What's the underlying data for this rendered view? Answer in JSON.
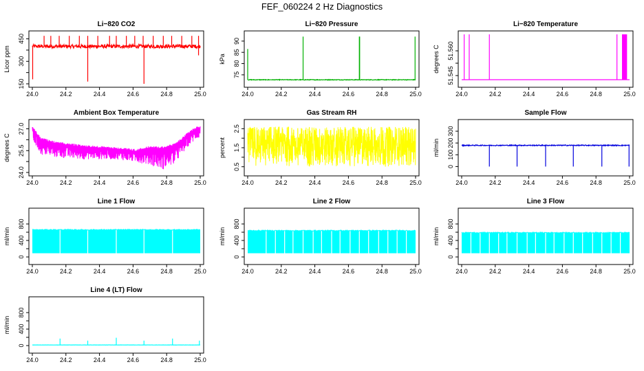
{
  "figure_title": "FEF_060224  2 Hz Diagnostics",
  "colors": {
    "co2": "#ff0000",
    "pressure": "#00b000",
    "temperature": "#ff00ff",
    "ambient": "#ff00ff",
    "rh": "#ffff00",
    "sample_flow": "#0000dd",
    "line_flow": "#00ffff"
  },
  "chart_data": [
    {
      "id": "co2",
      "type": "line",
      "title": "Li−820 CO2",
      "ylabel": "Licor ppm",
      "xlim": [
        24.0,
        25.0
      ],
      "ylim": [
        150,
        480
      ],
      "x_ticks": [
        "24.0",
        "24.2",
        "24.4",
        "24.6",
        "24.8",
        "25.0"
      ],
      "x_tick_values": [
        24.0,
        24.2,
        24.4,
        24.6,
        24.8,
        25.0
      ],
      "y_ticks": [
        "150",
        "300",
        "450"
      ],
      "y_tick_values": [
        150,
        300,
        450
      ],
      "minor_y_ticks": [
        225,
        375
      ],
      "baseline": 400,
      "noise": 12,
      "color_key": "co2",
      "spikes_up": [
        24.07,
        24.11,
        24.16,
        24.22,
        24.28,
        24.33,
        24.39,
        24.46,
        24.5,
        24.56,
        24.61,
        24.66,
        24.72,
        24.78,
        24.83,
        24.89,
        24.95,
        24.99
      ],
      "spike_up_value": 470,
      "spikes_down": [
        [
          24.002,
          180
        ],
        [
          24.33,
          165
        ],
        [
          24.665,
          150
        ],
        [
          24.99,
          340
        ]
      ]
    },
    {
      "id": "pressure",
      "type": "line",
      "title": "Li−820 Pressure",
      "ylabel": "kPa",
      "xlim": [
        24.0,
        25.0
      ],
      "ylim": [
        71,
        93
      ],
      "x_ticks": [
        "24.0",
        "24.2",
        "24.4",
        "24.6",
        "24.8",
        "25.0"
      ],
      "x_tick_values": [
        24.0,
        24.2,
        24.4,
        24.6,
        24.8,
        25.0
      ],
      "y_ticks": [
        "75",
        "80",
        "85",
        "90"
      ],
      "y_tick_values": [
        75,
        80,
        85,
        90
      ],
      "baseline": 72.8,
      "noise": 0.15,
      "color_key": "pressure",
      "spikes_up": [
        24.33,
        24.665,
        24.667,
        24.997
      ],
      "spike_up_value": 92,
      "spikes_extra": [
        [
          24.0,
          86.5
        ]
      ]
    },
    {
      "id": "temperature",
      "type": "line",
      "title": "Li−820 Temperature",
      "ylabel": "degrees C",
      "xlim": [
        24.0,
        25.0
      ],
      "ylim": [
        51.54,
        51.57
      ],
      "x_ticks": [
        "24.0",
        "24.2",
        "24.4",
        "24.6",
        "24.8",
        "25.0"
      ],
      "x_tick_values": [
        24.0,
        24.2,
        24.4,
        24.6,
        24.8,
        25.0
      ],
      "y_ticks": [
        "51.545",
        "51.560"
      ],
      "y_tick_values": [
        51.545,
        51.56
      ],
      "minor_y_ticks": [
        51.5525
      ],
      "baseline": 51.5425,
      "noise": 0,
      "color_key": "temperature",
      "spikes_up": [
        24.015,
        24.045,
        24.165,
        24.925
      ],
      "spike_up_value": 51.57,
      "filled_block": [
        24.955,
        24.985
      ]
    },
    {
      "id": "ambient",
      "type": "line",
      "title": "Ambient Box Temperature",
      "ylabel": "degrees C",
      "xlim": [
        24.0,
        25.0
      ],
      "ylim": [
        24.0,
        27.4
      ],
      "x_ticks": [
        "24.0",
        "24.2",
        "24.4",
        "24.6",
        "24.8",
        "25.0"
      ],
      "x_tick_values": [
        24.0,
        24.2,
        24.4,
        24.6,
        24.8,
        25.0
      ],
      "y_ticks": [
        "24.0",
        "25.5",
        "27.0"
      ],
      "y_tick_values": [
        24.0,
        25.5,
        27.0
      ],
      "minor_y_ticks": [
        24.75,
        26.25
      ],
      "color_key": "ambient",
      "envelope_upper": [
        [
          24.0,
          27.2
        ],
        [
          24.05,
          26.4
        ],
        [
          24.15,
          26.1
        ],
        [
          24.3,
          25.9
        ],
        [
          24.5,
          25.75
        ],
        [
          24.62,
          25.6
        ],
        [
          24.68,
          25.8
        ],
        [
          24.78,
          25.8
        ],
        [
          24.85,
          26.0
        ],
        [
          24.93,
          26.8
        ],
        [
          24.98,
          27.2
        ],
        [
          25.0,
          27.2
        ]
      ],
      "envelope_lower": [
        [
          24.0,
          26.2
        ],
        [
          24.05,
          25.2
        ],
        [
          24.15,
          25.0
        ],
        [
          24.3,
          24.9
        ],
        [
          24.5,
          24.9
        ],
        [
          24.62,
          24.7
        ],
        [
          24.7,
          24.5
        ],
        [
          24.78,
          24.2
        ],
        [
          24.85,
          24.6
        ],
        [
          24.93,
          25.8
        ],
        [
          24.98,
          26.3
        ],
        [
          25.0,
          26.4
        ]
      ]
    },
    {
      "id": "rh",
      "type": "line",
      "title": "Gas Stream RH",
      "ylabel": "percent",
      "xlim": [
        24.0,
        25.0
      ],
      "ylim": [
        0.2,
        2.8
      ],
      "x_ticks": [
        "24.0",
        "24.2",
        "24.4",
        "24.6",
        "24.8",
        "25.0"
      ],
      "x_tick_values": [
        24.0,
        24.2,
        24.4,
        24.6,
        24.8,
        25.0
      ],
      "y_ticks": [
        "0.5",
        "1.5",
        "2.5"
      ],
      "y_tick_values": [
        0.5,
        1.5,
        2.5
      ],
      "minor_y_ticks": [
        1.0,
        2.0
      ],
      "color_key": "rh",
      "band": [
        0.5,
        2.6
      ],
      "band_dense": [
        1.1,
        2.3
      ]
    },
    {
      "id": "sample_flow",
      "type": "line",
      "title": "Sample Flow",
      "ylabel": "ml/min",
      "xlim": [
        24.0,
        25.0
      ],
      "ylim": [
        -50,
        370
      ],
      "x_ticks": [
        "24.0",
        "24.2",
        "24.4",
        "24.6",
        "24.8",
        "25.0"
      ],
      "x_tick_values": [
        24.0,
        24.2,
        24.4,
        24.6,
        24.8,
        25.0
      ],
      "y_ticks": [
        "0",
        "100",
        "200",
        "300"
      ],
      "y_tick_values": [
        0,
        100,
        200,
        300
      ],
      "baseline": 180,
      "noise": 4,
      "color_key": "sample_flow",
      "spikes_down": [
        [
          24.165,
          0
        ],
        [
          24.33,
          0
        ],
        [
          24.5,
          0
        ],
        [
          24.665,
          0
        ],
        [
          24.835,
          0
        ],
        [
          24.997,
          0
        ]
      ]
    },
    {
      "id": "line1",
      "type": "line",
      "title": "Line 1 Flow",
      "ylabel": "ml/min",
      "xlim": [
        24.0,
        25.0
      ],
      "ylim": [
        -100,
        1100
      ],
      "x_ticks": [
        "24.0",
        "24.2",
        "24.4",
        "24.6",
        "24.8",
        "25.0"
      ],
      "x_tick_values": [
        24.0,
        24.2,
        24.4,
        24.6,
        24.8,
        25.0
      ],
      "y_ticks": [
        "0",
        "400",
        "800"
      ],
      "y_tick_values": [
        0,
        400,
        800
      ],
      "minor_y_ticks": [
        200,
        600
      ],
      "color_key": "line_flow",
      "band": [
        90,
        660
      ],
      "gaps": [
        24.165,
        24.33,
        24.5,
        24.665,
        24.835
      ]
    },
    {
      "id": "line2",
      "type": "line",
      "title": "Line 2 Flow",
      "ylabel": "ml/min",
      "xlim": [
        24.0,
        25.0
      ],
      "ylim": [
        -100,
        1100
      ],
      "x_ticks": [
        "24.0",
        "24.2",
        "24.4",
        "24.6",
        "24.8",
        "25.0"
      ],
      "x_tick_values": [
        24.0,
        24.2,
        24.4,
        24.6,
        24.8,
        25.0
      ],
      "y_ticks": [
        "0",
        "400",
        "800"
      ],
      "y_tick_values": [
        0,
        400,
        800
      ],
      "minor_y_ticks": [
        200,
        600
      ],
      "color_key": "line_flow",
      "band": [
        90,
        640
      ],
      "gaps": [
        24.11,
        24.165,
        24.22,
        24.27,
        24.33,
        24.39,
        24.44,
        24.5,
        24.55,
        24.61,
        24.665,
        24.72,
        24.78,
        24.835,
        24.89,
        24.945
      ]
    },
    {
      "id": "line3",
      "type": "line",
      "title": "Line 3 Flow",
      "ylabel": "ml/min",
      "xlim": [
        24.0,
        25.0
      ],
      "ylim": [
        -100,
        1100
      ],
      "x_ticks": [
        "24.0",
        "24.2",
        "24.4",
        "24.6",
        "24.8",
        "25.0"
      ],
      "x_tick_values": [
        24.0,
        24.2,
        24.4,
        24.6,
        24.8,
        25.0
      ],
      "y_ticks": [
        "0",
        "400",
        "800"
      ],
      "y_tick_values": [
        0,
        400,
        800
      ],
      "minor_y_ticks": [
        200,
        600
      ],
      "color_key": "line_flow",
      "band": [
        90,
        590
      ],
      "gaps": [
        24.055,
        24.11,
        24.165,
        24.22,
        24.27,
        24.33,
        24.39,
        24.44,
        24.5,
        24.55,
        24.61,
        24.665,
        24.72,
        24.78,
        24.835,
        24.89,
        24.945
      ]
    },
    {
      "id": "line4",
      "type": "line",
      "title": "Line 4 (LT) Flow",
      "ylabel": "ml/min",
      "xlim": [
        24.0,
        25.0
      ],
      "ylim": [
        -100,
        1100
      ],
      "x_ticks": [
        "24.0",
        "24.2",
        "24.4",
        "24.6",
        "24.8",
        "25.0"
      ],
      "x_tick_values": [
        24.0,
        24.2,
        24.4,
        24.6,
        24.8,
        25.0
      ],
      "y_ticks": [
        "0",
        "400",
        "800"
      ],
      "y_tick_values": [
        0,
        400,
        800
      ],
      "minor_y_ticks": [
        200,
        600
      ],
      "baseline": 15,
      "noise": 2,
      "color_key": "line_flow",
      "spikes_extra": [
        [
          24.165,
          170
        ],
        [
          24.33,
          120
        ],
        [
          24.5,
          190
        ],
        [
          24.665,
          120
        ],
        [
          24.835,
          170
        ],
        [
          24.995,
          120
        ]
      ]
    }
  ]
}
